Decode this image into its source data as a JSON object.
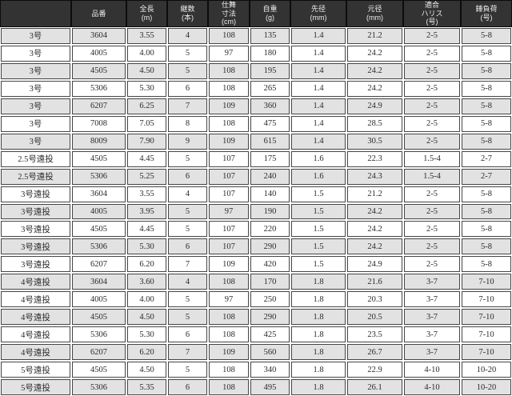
{
  "table": {
    "headers": [
      {
        "name": "header-model",
        "label": ""
      },
      {
        "name": "header-item-number",
        "label": "品番"
      },
      {
        "name": "header-total-length",
        "label": "全長\n(m)"
      },
      {
        "name": "header-sections",
        "label": "継数\n(本)"
      },
      {
        "name": "header-closed-length",
        "label": "仕舞\n寸法\n(cm)"
      },
      {
        "name": "header-weight",
        "label": "自重\n(g)"
      },
      {
        "name": "header-tip-diameter",
        "label": "先径\n(mm)"
      },
      {
        "name": "header-butt-diameter",
        "label": "元径\n(mm)"
      },
      {
        "name": "header-harris",
        "label": "適合\nハリス\n(号)"
      },
      {
        "name": "header-sinker-load",
        "label": "錘負荷\n(号)"
      }
    ],
    "rows": [
      [
        "3号",
        "3604",
        "3.55",
        "4",
        "108",
        "135",
        "1.4",
        "21.2",
        "2-5",
        "5-8"
      ],
      [
        "3号",
        "4005",
        "4.00",
        "5",
        "97",
        "180",
        "1.4",
        "24.2",
        "2-5",
        "5-8"
      ],
      [
        "3号",
        "4505",
        "4.50",
        "5",
        "108",
        "195",
        "1.4",
        "24.2",
        "2-5",
        "5-8"
      ],
      [
        "3号",
        "5306",
        "5.30",
        "6",
        "108",
        "265",
        "1.4",
        "24.2",
        "2-5",
        "5-8"
      ],
      [
        "3号",
        "6207",
        "6.25",
        "7",
        "109",
        "360",
        "1.4",
        "24.9",
        "2-5",
        "5-8"
      ],
      [
        "3号",
        "7008",
        "7.05",
        "8",
        "108",
        "475",
        "1.4",
        "28.5",
        "2-5",
        "5-8"
      ],
      [
        "3号",
        "8009",
        "7.90",
        "9",
        "109",
        "615",
        "1.4",
        "30.5",
        "2-5",
        "5-8"
      ],
      [
        "2.5号遠投",
        "4505",
        "4.45",
        "5",
        "107",
        "175",
        "1.6",
        "22.3",
        "1.5-4",
        "2-7"
      ],
      [
        "2.5号遠投",
        "5306",
        "5.25",
        "6",
        "107",
        "240",
        "1.6",
        "24.3",
        "1.5-4",
        "2-7"
      ],
      [
        "3号遠投",
        "3604",
        "3.55",
        "4",
        "107",
        "140",
        "1.5",
        "21.2",
        "2-5",
        "5-8"
      ],
      [
        "3号遠投",
        "4005",
        "3.95",
        "5",
        "97",
        "190",
        "1.5",
        "24.2",
        "2-5",
        "5-8"
      ],
      [
        "3号遠投",
        "4505",
        "4.45",
        "5",
        "107",
        "220",
        "1.5",
        "24.2",
        "2-5",
        "5-8"
      ],
      [
        "3号遠投",
        "5306",
        "5.30",
        "6",
        "107",
        "290",
        "1.5",
        "24.2",
        "2-5",
        "5-8"
      ],
      [
        "3号遠投",
        "6207",
        "6.20",
        "7",
        "109",
        "420",
        "1.5",
        "24.9",
        "2-5",
        "5-8"
      ],
      [
        "4号遠投",
        "3604",
        "3.60",
        "4",
        "108",
        "170",
        "1.8",
        "21.6",
        "3-7",
        "7-10"
      ],
      [
        "4号遠投",
        "4005",
        "4.00",
        "5",
        "97",
        "250",
        "1.8",
        "20.3",
        "3-7",
        "7-10"
      ],
      [
        "4号遠投",
        "4505",
        "4.50",
        "5",
        "108",
        "290",
        "1.8",
        "20.5",
        "3-7",
        "7-10"
      ],
      [
        "4号遠投",
        "5306",
        "5.30",
        "6",
        "108",
        "425",
        "1.8",
        "23.5",
        "3-7",
        "7-10"
      ],
      [
        "4号遠投",
        "6207",
        "6.20",
        "7",
        "109",
        "560",
        "1.8",
        "26.7",
        "3-7",
        "7-10"
      ],
      [
        "5号遠投",
        "4505",
        "4.50",
        "5",
        "108",
        "340",
        "1.8",
        "22.9",
        "4-10",
        "10-20"
      ],
      [
        "5号遠投",
        "5306",
        "5.35",
        "6",
        "108",
        "495",
        "1.8",
        "26.1",
        "4-10",
        "10-20"
      ]
    ]
  },
  "colors": {
    "header_bg": "#333333",
    "header_gap": "#161616",
    "header_text": "#ededed",
    "row_shaded_bg": "#e2e2e2",
    "row_plain_bg": "#ffffff",
    "cell_border": "#454545",
    "body_text": "#2b2b2b"
  }
}
